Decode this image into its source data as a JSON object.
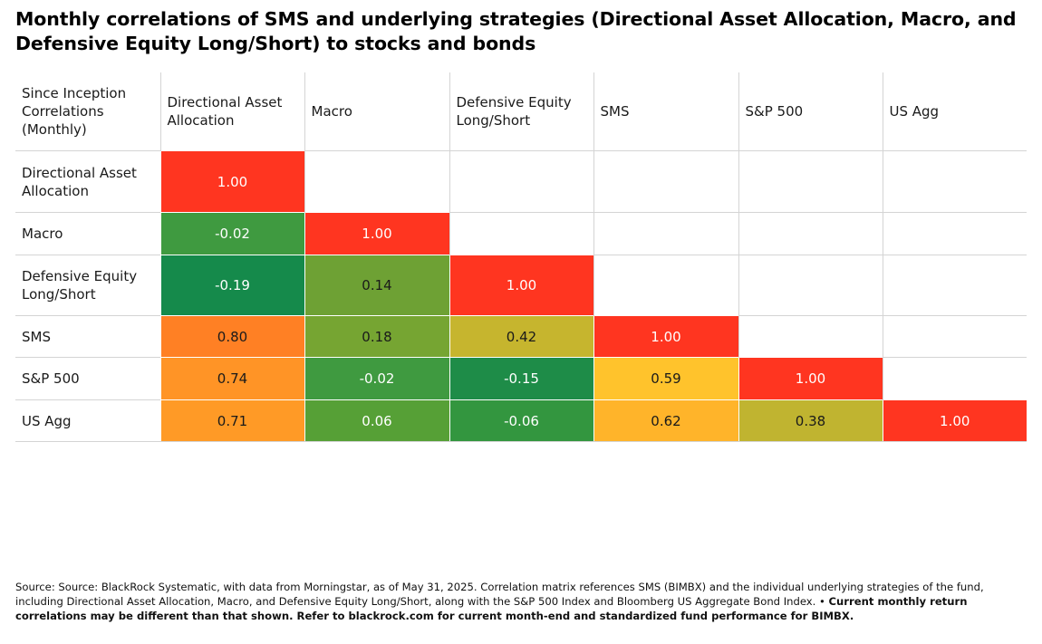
{
  "title": "Monthly correlations of SMS and underlying strategies (Directional Asset Allocation, Macro, and Defensive Equity Long/Short) to stocks and bonds",
  "chart_data": {
    "type": "heatmap",
    "title": "Monthly correlations of SMS and underlying strategies (Directional Asset Allocation, Macro, and Defensive Equity Long/Short) to stocks and bonds",
    "corner_label": "Since Inception Correlations (Monthly)",
    "columns": [
      "Directional Asset Allocation",
      "Macro",
      "Defensive Equity Long/Short",
      "SMS",
      "S&P 500",
      "US Agg"
    ],
    "rows": [
      {
        "label": "Directional Asset Allocation",
        "values": [
          1.0,
          null,
          null,
          null,
          null,
          null
        ],
        "display": [
          "1.00",
          "",
          "",
          "",
          "",
          ""
        ]
      },
      {
        "label": "Macro",
        "values": [
          -0.02,
          1.0,
          null,
          null,
          null,
          null
        ],
        "display": [
          "-0.02",
          "1.00",
          "",
          "",
          "",
          ""
        ]
      },
      {
        "label": "Defensive Equity Long/Short",
        "values": [
          -0.19,
          0.14,
          1.0,
          null,
          null,
          null
        ],
        "display": [
          "-0.19",
          "0.14",
          "1.00",
          "",
          "",
          ""
        ]
      },
      {
        "label": "SMS",
        "values": [
          0.8,
          0.18,
          0.42,
          1.0,
          null,
          null
        ],
        "display": [
          "0.80",
          "0.18",
          "0.42",
          "1.00",
          "",
          ""
        ]
      },
      {
        "label": "S&P 500",
        "values": [
          0.74,
          -0.02,
          -0.15,
          0.59,
          1.0,
          null
        ],
        "display": [
          "0.74",
          "-0.02",
          "-0.15",
          "0.59",
          "1.00",
          ""
        ]
      },
      {
        "label": "US Agg",
        "values": [
          0.71,
          0.06,
          -0.06,
          0.62,
          0.38,
          1.0
        ],
        "display": [
          "0.71",
          "0.06",
          "-0.06",
          "0.62",
          "0.38",
          "1.00"
        ]
      }
    ],
    "colors": {
      "1.00": "#ff3520",
      "0.80": "#ff8024",
      "0.74": "#ff9426",
      "0.71": "#ff9a26",
      "0.62": "#ffb42a",
      "0.59": "#ffc32c",
      "0.42": "#c6b52e",
      "0.38": "#c0b430",
      "0.18": "#76a532",
      "0.14": "#6ea134",
      "0.06": "#56a036",
      "-0.02": "#3f9a40",
      "-0.06": "#33963f",
      "-0.15": "#1e8c48",
      "-0.19": "#158a4b"
    },
    "text_colors": {
      "light": "#ffffff",
      "dark": "#1a1a1a"
    }
  },
  "footer": {
    "regular": "Source: Source: BlackRock Systematic, with data from Morningstar, as of May 31, 2025. Correlation matrix references SMS (BIMBX) and the individual underlying strategies of the fund, including Directional Asset Allocation, Macro, and Defensive Equity Long/Short, along with the S&P 500 Index and Bloomberg US Aggregate Bond Index. • ",
    "bold": "Current monthly return correlations may be different than that shown. Refer to blackrock.com for current month-end and standardized fund performance for BIMBX."
  }
}
